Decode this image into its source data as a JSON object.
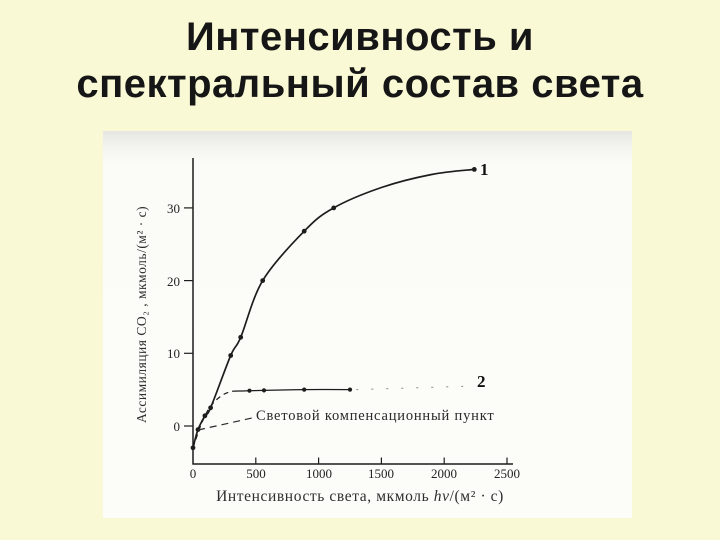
{
  "slide": {
    "background_color": "#FAF9D5",
    "title": {
      "line1": "Интенсивность и",
      "line2": "спектральный состав света"
    }
  },
  "chart_data": {
    "type": "line",
    "title": "",
    "xlabel": "Интенсивность света, мкмоль hν/(м² · с)",
    "xlabel_parts": {
      "prefix": "Интенсивность света, мкмоль ",
      "italic": "hν",
      "suffix": "/(м² · с)"
    },
    "ylabel": "Ассимиляция СО₂ , мкмоль/(м² · с)",
    "xlim": [
      0,
      2500
    ],
    "ylim": [
      -5,
      36
    ],
    "grid": false,
    "legend_position": "none",
    "x_ticks": [
      0,
      500,
      1000,
      1500,
      2000,
      2500
    ],
    "x_tick_labels": [
      "0",
      "500",
      "1000",
      "1500",
      "2000",
      "2500"
    ],
    "y_ticks": [
      0,
      10,
      20,
      30
    ],
    "y_tick_labels": [
      "0",
      "10",
      "20",
      "30"
    ],
    "series": [
      {
        "label": "1",
        "markers": [
          [
            0,
            -3
          ],
          [
            40,
            -0.5
          ],
          [
            95,
            1.4
          ],
          [
            140,
            2.5
          ],
          [
            300,
            9.7
          ],
          [
            380,
            12.2
          ],
          [
            555,
            20
          ],
          [
            885,
            26.8
          ],
          [
            1120,
            30
          ],
          [
            2240,
            35.3
          ]
        ],
        "segments": [
          {
            "style": "solid",
            "points": [
              [
                0,
                -3
              ],
              [
                40,
                -0.5
              ],
              [
                95,
                1.4
              ],
              [
                140,
                2.5
              ],
              [
                300,
                9.7
              ],
              [
                380,
                12.2
              ],
              [
                555,
                20
              ],
              [
                885,
                26.8
              ],
              [
                1120,
                30
              ],
              [
                1500,
                32.8
              ],
              [
                1900,
                34.6
              ],
              [
                2240,
                35.3
              ]
            ]
          }
        ]
      },
      {
        "label": "2",
        "markers": [
          [
            450,
            4.85
          ],
          [
            565,
            4.9
          ],
          [
            885,
            5.0
          ],
          [
            1250,
            5.0
          ]
        ],
        "segments": [
          {
            "style": "dashed",
            "points": [
              [
                0,
                -3
              ],
              [
                60,
                0
              ],
              [
                120,
                2.2
              ],
              [
                180,
                3.5
              ],
              [
                250,
                4.4
              ],
              [
                320,
                4.8
              ]
            ]
          },
          {
            "style": "solid",
            "points": [
              [
                320,
                4.8
              ],
              [
                450,
                4.85
              ],
              [
                565,
                4.9
              ],
              [
                885,
                5.0
              ],
              [
                1250,
                5.0
              ]
            ]
          },
          {
            "style": "sparse",
            "points": [
              [
                1300,
                5.0
              ],
              [
                2230,
                5.5
              ]
            ]
          }
        ]
      }
    ],
    "annotation": {
      "text": "Световой компенсационный пункт",
      "leader_from": [
        40,
        -0.55
      ],
      "leader_to": [
        470,
        1.1
      ]
    }
  }
}
